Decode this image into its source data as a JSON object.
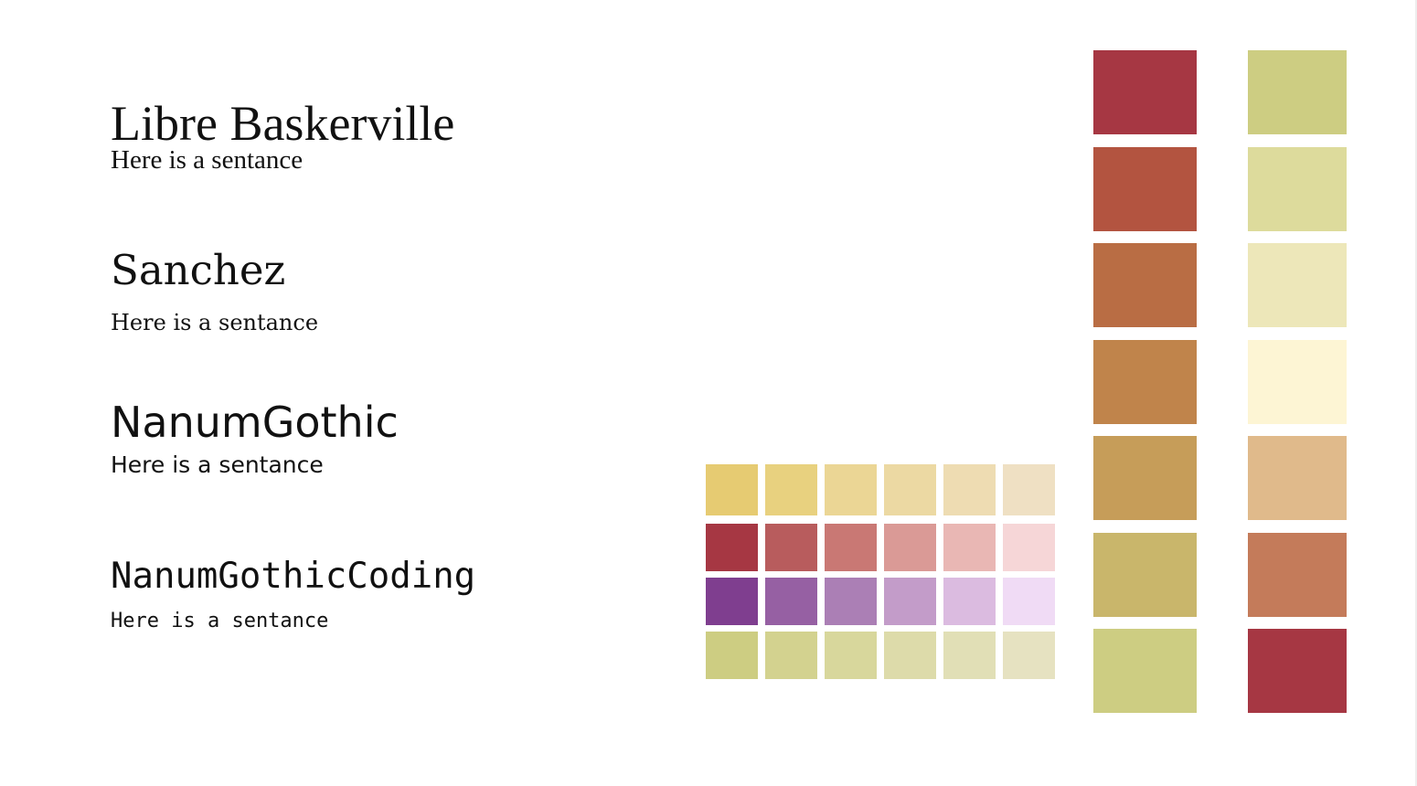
{
  "font_samples": [
    {
      "name": "Libre Baskerville",
      "sentence": "Here is a sentance"
    },
    {
      "name": "Sanchez",
      "sentence": "Here is a sentance"
    },
    {
      "name": "NanumGothic",
      "sentence": "Here is a sentance"
    },
    {
      "name": "NanumGothicCoding",
      "sentence": "Here is a sentance"
    }
  ],
  "swatch_grid": [
    [
      "#e6cb72",
      "#e8d17f",
      "#ebd695",
      "#ecd9a3",
      "#eedcb2",
      "#efe0c3"
    ],
    [
      "#a63743",
      "#b85c5d",
      "#c97874",
      "#da9a96",
      "#e9b7b4",
      "#f6d6d7"
    ],
    [
      "#7f3e8f",
      "#9660a3",
      "#ab7fb5",
      "#c39cc9",
      "#dbbbe0",
      "#f0dbf5"
    ],
    [
      "#cdcd82",
      "#d3d28f",
      "#d8d79c",
      "#dddbaa",
      "#e1dfb6",
      "#e6e2c1"
    ]
  ],
  "swatch_columns": [
    [
      "#a63743",
      "#b35440",
      "#b96d44",
      "#c0844b",
      "#c69d59",
      "#c9b66b",
      "#cdcd82"
    ],
    [
      "#cdcd82",
      "#dddb9c",
      "#ede7b9",
      "#fdf5d4",
      "#e0ba8b",
      "#c47b5a",
      "#a63743"
    ]
  ]
}
